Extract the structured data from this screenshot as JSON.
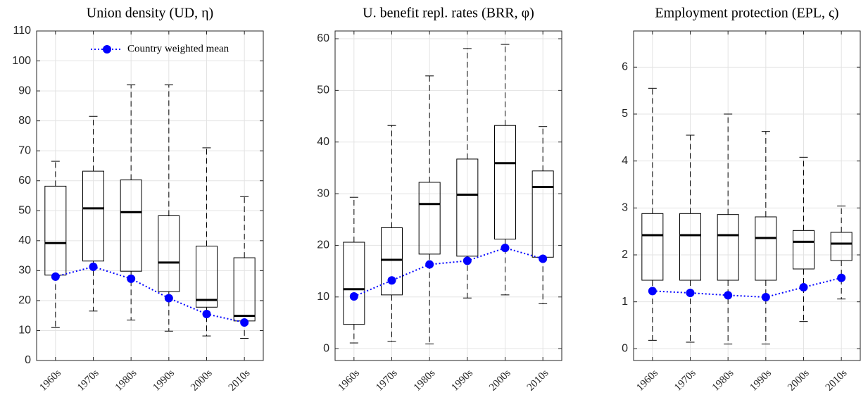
{
  "chart_data": [
    {
      "type": "box",
      "title": "Union density (UD, η)",
      "categories": [
        "1960s",
        "1970s",
        "1980s",
        "1990s",
        "2000s",
        "2010s"
      ],
      "whislo": [
        11,
        16.5,
        13.5,
        9.8,
        8.2,
        7.4
      ],
      "q1": [
        28.5,
        33.2,
        29.8,
        23,
        17.8,
        13.2
      ],
      "med": [
        39.2,
        50.8,
        49.5,
        32.7,
        20.2,
        14.9
      ],
      "q3": [
        58.2,
        63.2,
        60.3,
        48.3,
        38.2,
        34.3
      ],
      "whishi": [
        66.5,
        81.5,
        92,
        92,
        71,
        54.7
      ],
      "box_color": "#000000",
      "series": [
        {
          "name": "Country weighted mean",
          "color": "#0000ff",
          "values": [
            28,
            31.3,
            27.3,
            20.8,
            15.5,
            12.7
          ]
        }
      ],
      "ylim": [
        0,
        110
      ],
      "yticks": [
        0,
        10,
        20,
        30,
        40,
        50,
        60,
        70,
        80,
        90,
        100,
        110
      ],
      "grid": true,
      "legend": "upper right"
    },
    {
      "type": "box",
      "title": "U. benefit repl. rates (BRR, φ)",
      "categories": [
        "1960s",
        "1970s",
        "1980s",
        "1990s",
        "2000s",
        "2010s"
      ],
      "whislo": [
        1.1,
        1.4,
        0.9,
        9.8,
        10.4,
        8.7
      ],
      "q1": [
        4.7,
        10.4,
        18.3,
        17.9,
        21.2,
        17.7
      ],
      "med": [
        11.5,
        17.2,
        28,
        29.8,
        35.9,
        31.3
      ],
      "q3": [
        20.6,
        23.4,
        32.2,
        36.7,
        43.2,
        34.4
      ],
      "whishi": [
        29.3,
        43.2,
        52.8,
        58.1,
        58.9,
        43
      ],
      "box_color": "#000000",
      "series": [
        {
          "color": "#0000ff",
          "values": [
            10.1,
            13.2,
            16.3,
            17,
            19.5,
            17.4
          ]
        }
      ],
      "ylim": [
        -2.3,
        61.5
      ],
      "yticks": [
        0,
        10,
        20,
        30,
        40,
        50,
        60
      ],
      "grid": true
    },
    {
      "type": "box",
      "title": "Employment protection (EPL, ς)",
      "categories": [
        "1960s",
        "1970s",
        "1980s",
        "1990s",
        "2000s",
        "2010s"
      ],
      "whislo": [
        0.18,
        0.14,
        0.1,
        0.1,
        0.58,
        1.06
      ],
      "q1": [
        1.46,
        1.46,
        1.46,
        1.46,
        1.7,
        1.88
      ],
      "med": [
        2.42,
        2.42,
        2.42,
        2.36,
        2.28,
        2.24
      ],
      "q3": [
        2.88,
        2.88,
        2.86,
        2.81,
        2.52,
        2.48
      ],
      "whishi": [
        5.55,
        4.55,
        5,
        4.63,
        4.08,
        3.04
      ],
      "box_color": "#000000",
      "series": [
        {
          "color": "#0000ff",
          "values": [
            1.23,
            1.19,
            1.14,
            1.1,
            1.31,
            1.51
          ]
        }
      ],
      "ylim": [
        -0.25,
        6.77
      ],
      "yticks": [
        0,
        1,
        2,
        3,
        4,
        5,
        6
      ],
      "grid": true
    }
  ]
}
